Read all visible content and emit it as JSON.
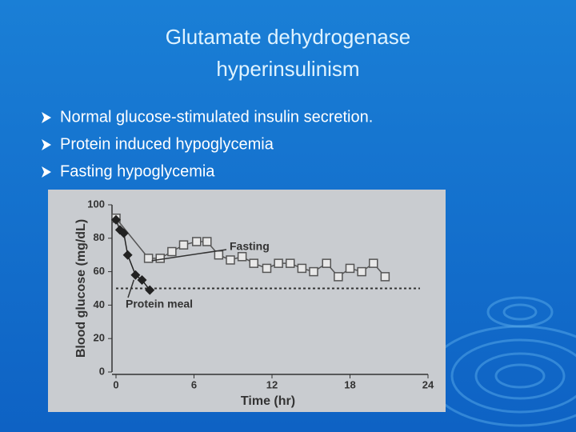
{
  "title": [
    "Glutamate dehydrogenase",
    "hyperinsulinism"
  ],
  "bullets": [
    "Normal glucose-stimulated insulin secretion.",
    "Protein induced hypoglycemia",
    "Fasting hypoglycemia"
  ],
  "chart_data": {
    "type": "line",
    "xlabel": "Time (hr)",
    "ylabel": "Blood glucose (mg/dL)",
    "xlim": [
      0,
      24
    ],
    "xticks": [
      0,
      6,
      12,
      18,
      24
    ],
    "ylim": [
      0,
      100
    ],
    "yticks": [
      0,
      20,
      40,
      60,
      80,
      100
    ],
    "hline": 50,
    "series": [
      {
        "name": "Fasting",
        "color": "#555555",
        "marker": "square",
        "x": [
          0,
          2.5,
          3.4,
          4.3,
          5.2,
          6.2,
          7,
          7.9,
          8.8,
          9.7,
          10.6,
          11.6,
          12.5,
          13.4,
          14.3,
          15.2,
          16.2,
          17.1,
          18,
          18.9,
          19.8,
          20.7
        ],
        "values": [
          92,
          68,
          68,
          72,
          76,
          78,
          78,
          70,
          67,
          69,
          65,
          62,
          65,
          65,
          62,
          60,
          65,
          57,
          62,
          60,
          65,
          57
        ]
      },
      {
        "name": "Protein meal",
        "color": "#222222",
        "marker": "diamond",
        "x": [
          0,
          0.3,
          0.6,
          0.9,
          1.5,
          2,
          2.6
        ],
        "values": [
          91,
          85,
          83,
          70,
          58,
          55,
          49
        ]
      }
    ]
  }
}
